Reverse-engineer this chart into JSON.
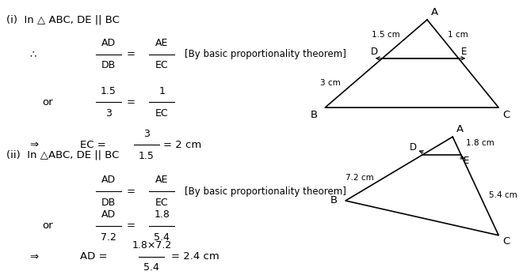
{
  "bg_color": "#ffffff",
  "fig_width": 6.6,
  "fig_height": 3.48,
  "dpi": 100,
  "part_i": {
    "header": "(i)  In △ ABC, DE || BC",
    "line1_bracket": "[By basic proportionality theorem]",
    "tri1": {
      "ad_label": "1.5 cm",
      "ae_label": "1 cm",
      "db_label": "3 cm"
    }
  },
  "part_ii": {
    "header": "(ii)  In △ABC, DE || BC",
    "line1_bracket": "[By basic proportionality theorem]",
    "tri2": {
      "bd_label": "7.2 cm",
      "ae_label": "1.8 cm",
      "ec_label": "5.4 cm"
    }
  }
}
